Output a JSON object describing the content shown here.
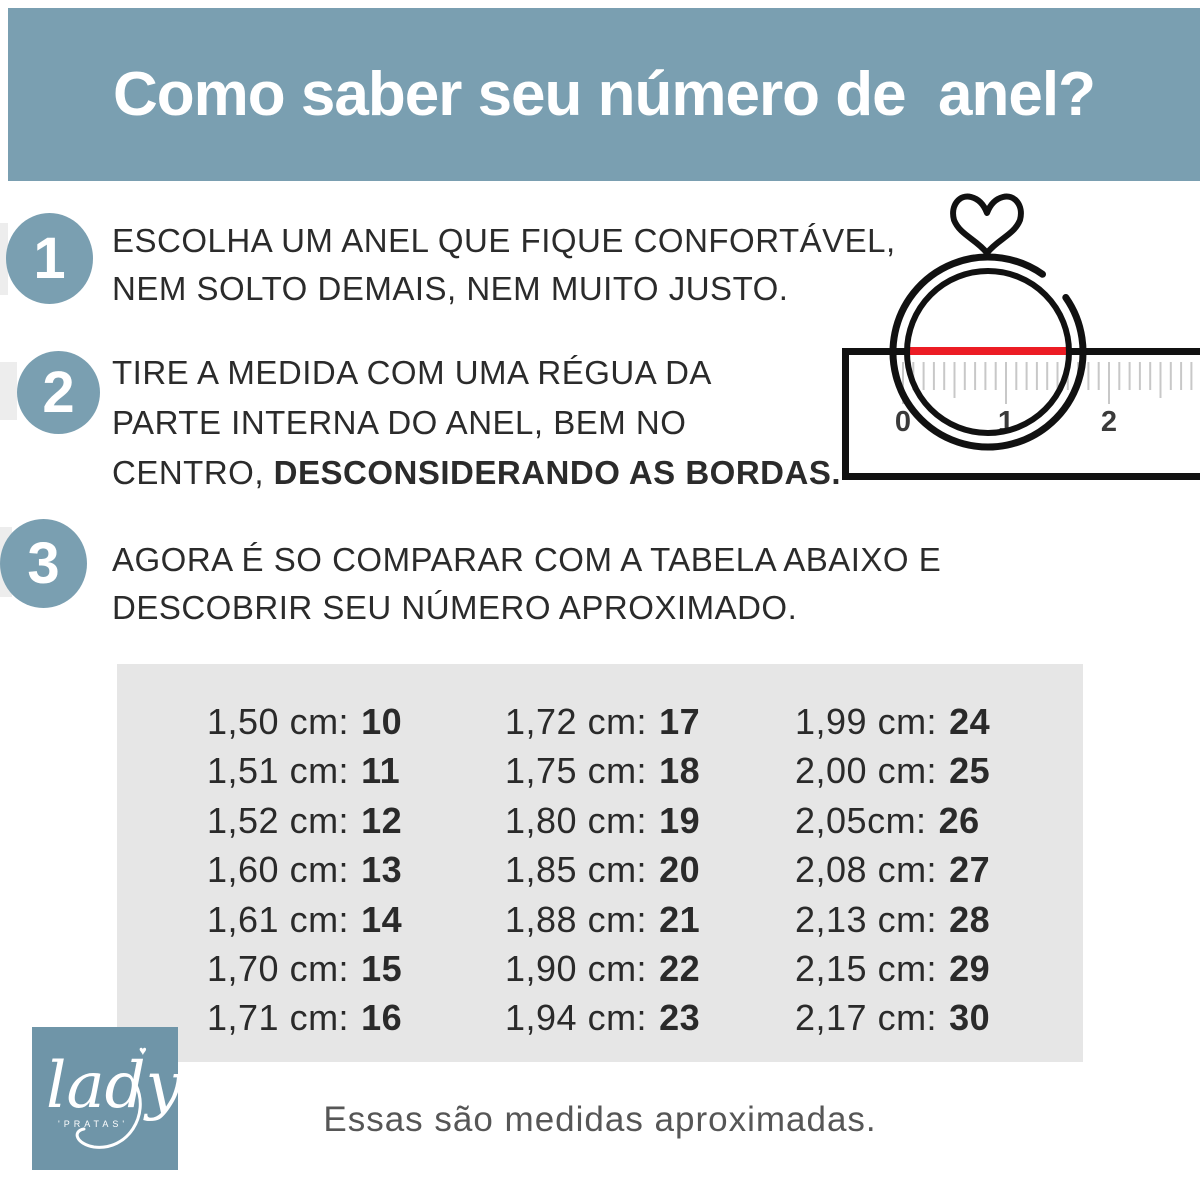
{
  "header": {
    "title": "Como saber seu número de  anel?",
    "bg_color": "#7A9FB1",
    "text_color": "#FFFFFF"
  },
  "steps": [
    {
      "number": "1",
      "lines": [
        [
          {
            "text": "ESCOLHA UM ANEL QUE FIQUE CONFORTÁVEL,",
            "bold": false
          }
        ],
        [
          {
            "text": "NEM SOLTO DEMAIS, NEM MUITO JUSTO.",
            "bold": false
          }
        ]
      ]
    },
    {
      "number": "2",
      "lines": [
        [
          {
            "text": "TIRE A MEDIDA COM UMA RÉGUA DA",
            "bold": false
          }
        ],
        [
          {
            "text": "PARTE INTERNA DO ANEL, BEM NO",
            "bold": false
          }
        ],
        [
          {
            "text": "CENTRO, ",
            "bold": false
          },
          {
            "text": "DESCONSIDERANDO AS BORDAS.",
            "bold": true
          }
        ]
      ]
    },
    {
      "number": "3",
      "lines": [
        [
          {
            "text": "AGORA É SO COMPARAR COM A TABELA ABAIXO E",
            "bold": false
          }
        ],
        [
          {
            "text": "DESCOBRIR SEU NÚMERO APROXIMADO.",
            "bold": false
          }
        ]
      ]
    }
  ],
  "illustration": {
    "ruler_numbers": [
      "0",
      "1",
      "2"
    ],
    "red_line_color": "#EC1C24",
    "stroke_color": "#111111",
    "tick_color": "#C8C8C8",
    "number_color": "#3A3A3A"
  },
  "size_table": {
    "bg_color": "#E6E6E6",
    "columns": [
      [
        {
          "cm": "1,50 cm:",
          "size": "10"
        },
        {
          "cm": "1,51 cm:",
          "size": "11"
        },
        {
          "cm": "1,52 cm:",
          "size": "12"
        },
        {
          "cm": "1,60 cm:",
          "size": "13"
        },
        {
          "cm": "1,61 cm:",
          "size": "14"
        },
        {
          "cm": "1,70 cm:",
          "size": "15"
        },
        {
          "cm": "1,71 cm:",
          "size": "16"
        }
      ],
      [
        {
          "cm": "1,72 cm:",
          "size": "17"
        },
        {
          "cm": "1,75 cm:",
          "size": "18"
        },
        {
          "cm": "1,80 cm:",
          "size": "19"
        },
        {
          "cm": "1,85 cm:",
          "size": "20"
        },
        {
          "cm": "1,88 cm:",
          "size": "21"
        },
        {
          "cm": "1,90 cm:",
          "size": "22"
        },
        {
          "cm": "1,94 cm:",
          "size": "23"
        }
      ],
      [
        {
          "cm": "1,99 cm:",
          "size": "24"
        },
        {
          "cm": "2,00 cm:",
          "size": "25"
        },
        {
          "cm": "2,05cm:",
          "size": "26"
        },
        {
          "cm": "2,08 cm:",
          "size": "27"
        },
        {
          "cm": "2,13 cm:",
          "size": "28"
        },
        {
          "cm": "2,15 cm:",
          "size": "29"
        },
        {
          "cm": "2,17 cm:",
          "size": "30"
        }
      ]
    ]
  },
  "logo": {
    "word": "lady",
    "subtitle": "'PRATAS'",
    "bg_color": "#6F95A8",
    "heart_glyph": "♥"
  },
  "footer": {
    "note": "Essas são medidas aproximadas."
  }
}
